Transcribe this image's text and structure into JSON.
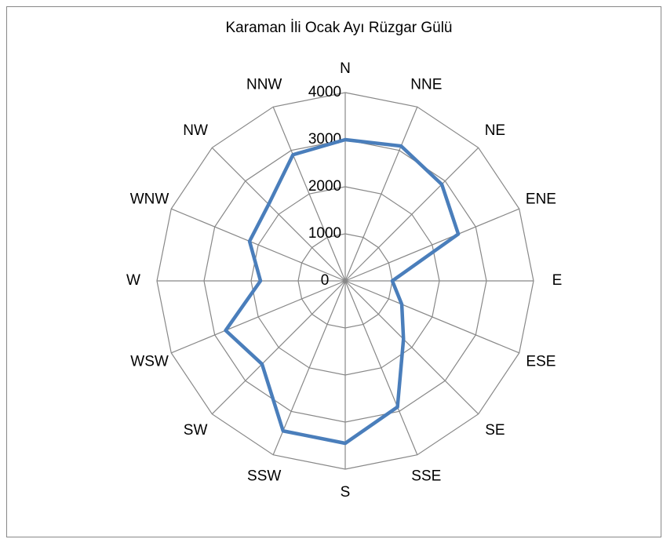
{
  "chart_data": {
    "type": "radar",
    "title": "Karaman İli Ocak Ayı Rüzgar Gülü",
    "categories": [
      "N",
      "NNE",
      "NE",
      "ENE",
      "E",
      "ESE",
      "SE",
      "SSE",
      "S",
      "SSW",
      "SW",
      "WSW",
      "W",
      "WNW",
      "NW",
      "NNW"
    ],
    "series": [
      {
        "color": "#4a7ebb",
        "values": [
          3000,
          3100,
          2900,
          2600,
          1000,
          1300,
          1750,
          2900,
          3450,
          3450,
          2500,
          2750,
          1800,
          2200,
          2300,
          2900
        ]
      }
    ],
    "ylim": [
      0,
      4000
    ],
    "yticks": [
      0,
      1000,
      2000,
      3000,
      4000
    ],
    "grid": true
  }
}
